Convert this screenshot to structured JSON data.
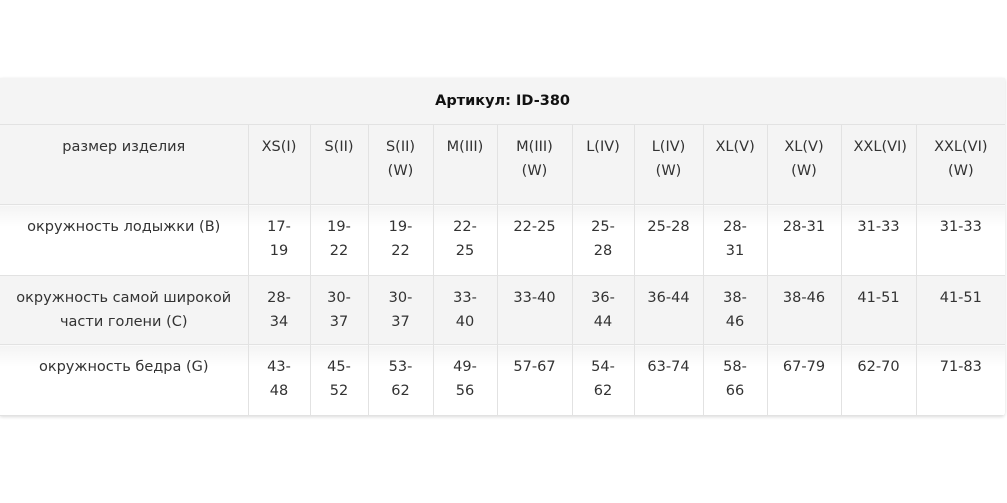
{
  "title": "Артикул: ID-380",
  "header": {
    "label": "размер изделия",
    "sizes": [
      "XS(I)",
      "S(II)",
      "S(II) (W)",
      "M(III)",
      "M(III) (W)",
      "L(IV)",
      "L(IV) (W)",
      "XL(V)",
      "XL(V) (W)",
      "XXL(VI)",
      "XXL(VI) (W)"
    ]
  },
  "rows": [
    {
      "label": "окружность лодыжки (B)",
      "values": [
        "17-19",
        "19-22",
        "19-22",
        "22-25",
        "22-25",
        "25-28",
        "25-28",
        "28-31",
        "28-31",
        "31-33",
        "31-33"
      ]
    },
    {
      "label": "окружность самой широкой части голени (C)",
      "values": [
        "28-34",
        "30-37",
        "30-37",
        "33-40",
        "33-40",
        "36-44",
        "36-44",
        "38-46",
        "38-46",
        "41-51",
        "41-51"
      ]
    },
    {
      "label": "окружность бедра (G)",
      "values": [
        "43-48",
        "45-52",
        "53-62",
        "49-56",
        "57-67",
        "54-62",
        "63-74",
        "58-66",
        "67-79",
        "62-70",
        "71-83"
      ]
    }
  ]
}
